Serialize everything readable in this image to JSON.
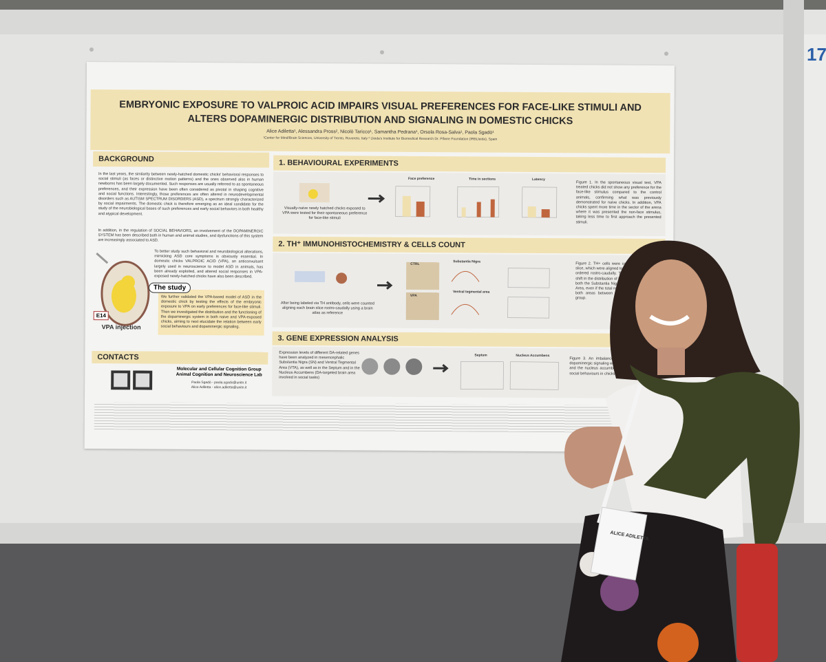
{
  "booth_number": "17",
  "badge": "ALICE ADILETTA",
  "poster": {
    "title": "EMBRYONIC EXPOSURE TO VALPROIC ACID IMPAIRS VISUAL PREFERENCES FOR FACE-LIKE STIMULI AND ALTERS DOPAMINERGIC DISTRIBUTION AND SIGNALING IN DOMESTIC CHICKS",
    "authors": "Alice Adiletta¹, Alessandra Pross², Nicolò Taricco¹, Samantha Pedrana¹, Orsola Rosa-Salva¹, Paola Sgadò¹",
    "affiliation": "¹Center for Mind/Brain Sciences, University of Trento, Rovereto, Italy   ² Lleida's Institute for Biomedical Research Dr. Pifarre Foundation (IRBLleida), Spain",
    "background": {
      "heading": "BACKGROUND",
      "paragraphs": [
        "In the last years, the similarity between newly-hatched domestic chicks' behavioral responses to social stimuli (as faces or distinctive motion patterns) and the ones observed also in human newborns has been largely documented. Such responses are usually referred to as spontaneous preferences, and their expression have been often considered as pivotal in shaping cognitive and social functions. Interestingly, those preferences are often altered in neurodevelopmental disorders such as AUTISM SPECTRUM DISORDERS (ASD), a spectrum strongly characterized by social impairments. The domestic chick is therefore emerging as an ideal candidate for the study of the neurobiological bases of such preferences and early social behaviors in both healthy and atypical development.",
        "In addition, in the regulation of SOCIAL BEHAVIORS, an involvement of the DOPAMINERGIC SYSTEM has been described both in human and animal studies, and dysfunctions of this system are increasingly associated to ASD.",
        "To better study such behavioral and neurobiological alterations, mimicking ASD core symptoms is obviously essential. In domestic chicks VALPROIC ACID (VPA), an anticonvulsant largely used in neuroscience to model ASD in animals, has been already exploited, and altered social responses in VPA-exposed newly-hatched chicks have also been described."
      ],
      "study_label": "The study",
      "study_text": "We further validated the VPA-based model of ASD in the domestic chick by testing the effects of the embryonic exposure to VPA on early preferences for face-like stimuli. Then we investigated the distribution and the functioning of the dopaminergic system in both naive and VPA-exposed chicks, aiming to next elucidate the relation between early social behaviours and dopaminergic signaling.",
      "stage_label": "E14",
      "injection_label": "VPA injection"
    },
    "contacts": {
      "heading": "CONTACTS",
      "lines": [
        "Molecular and Cellular Cognition Group",
        "Animal Cognition and Neuroscience Lab",
        "Paola Sgadò - paola.sgado@unitn.it",
        "Alice Adiletta - alice.adiletta@unitn.it"
      ]
    },
    "sections": [
      {
        "heading": "1.  BEHAVIOURAL EXPERIMENTS",
        "caption": "Visually-naive newly hatched chicks exposed to VPA were tested for their spontaneous preference for face-like stimuli",
        "figure_labels": [
          "Face preference",
          "Time in sections",
          "Latency"
        ],
        "figure_caption": "Figure 1. In the spontaneous visual test, VPA treated chicks did not show any preference for the face-like stimulus compared to the control animals, confirming what was previously demonstrated for naive chicks. In addition, VPA chicks spent more time in the sector of the arena where it was presented the non-face stimulus, taking less time to first approach the presented stimuli."
      },
      {
        "heading": "2.  TH⁺ IMMUNOHISTOCHEMISTRY & CELLS COUNT",
        "caption": "After being labeled via TH antibody, cells were counted aligning each brain slice rostro-caudally using a brain atlas as reference",
        "figure_labels": [
          "CTRL",
          "VPA",
          "Substantia Nigra",
          "Ventral tegmental area"
        ],
        "figure_caption": "Figure 2. TH+ cells were counted in each brain slice, which were aligned to a brain atlas and then ordered rostro-caudally. The count highlighted a shift in the distribution of the dopaminergic cells in both the Substantia Nigra and Ventral Tegmental Area, even if the total number remained stable for both areas between the CTRL and the VPA group."
      },
      {
        "heading": "3.  GENE EXPRESSION ANALYSIS",
        "caption": "Expression levels of different DA-related genes have been analyzed in mesencephalic Substantia Nigra (SN) and Ventral Tegmental Area (VTA), as well as in the Septum and in the Nucleus Accumbens (DA-targeted brain area involved in social tasks)",
        "figure_labels": [
          "Septum",
          "Nucleus Accumbens"
        ],
        "figure_caption": "Figure 3. An imbalance of genes related to the dopaminergic signaling was found in both the septum and the nucleus accumbens, two areas involved in social behaviours in chicks."
      }
    ]
  }
}
